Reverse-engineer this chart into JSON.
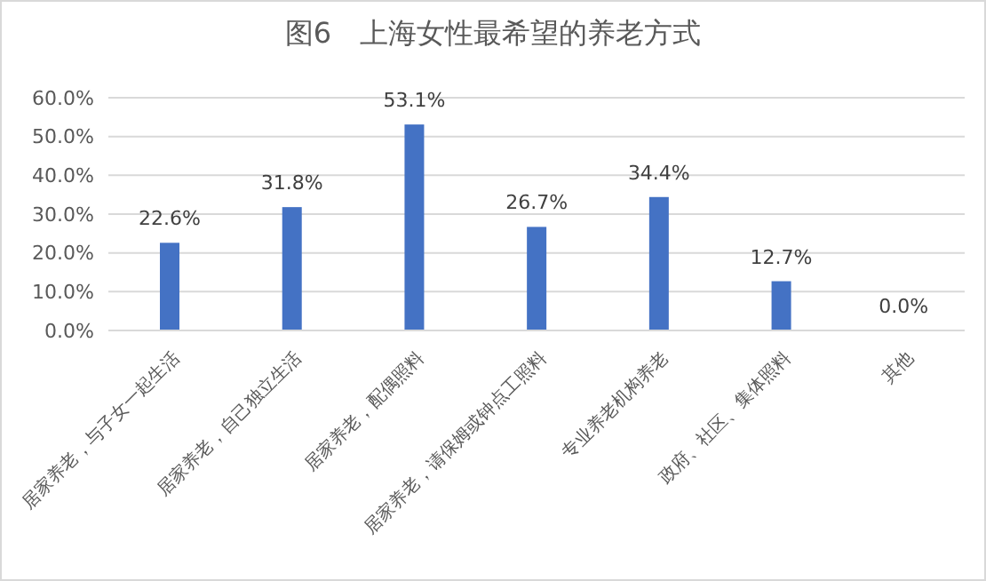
{
  "chart_data": {
    "type": "bar",
    "title": "图6　上海女性最希望的养老方式",
    "categories": [
      "居家养老，与子女一起生活",
      "居家养老，自己独立生活",
      "居家养老，配偶照料",
      "居家养老，请保姆或钟点工照料",
      "专业养老机构养老",
      "政府、社区、集体照料",
      "其他"
    ],
    "values": [
      22.6,
      31.8,
      53.1,
      26.7,
      34.4,
      12.7,
      0.0
    ],
    "value_labels": [
      "22.6%",
      "31.8%",
      "53.1%",
      "26.7%",
      "34.4%",
      "12.7%",
      "0.0%"
    ],
    "color": "#4472c4",
    "ylim": [
      0,
      60
    ],
    "yticks": [
      {
        "value": 0,
        "label": "0.0%"
      },
      {
        "value": 10,
        "label": "10.0%"
      },
      {
        "value": 20,
        "label": "20.0%"
      },
      {
        "value": 30,
        "label": "30.0%"
      },
      {
        "value": 40,
        "label": "40.0%"
      },
      {
        "value": 50,
        "label": "50.0%"
      },
      {
        "value": 60,
        "label": "60.0%"
      }
    ],
    "grid": "y",
    "legend": false
  }
}
